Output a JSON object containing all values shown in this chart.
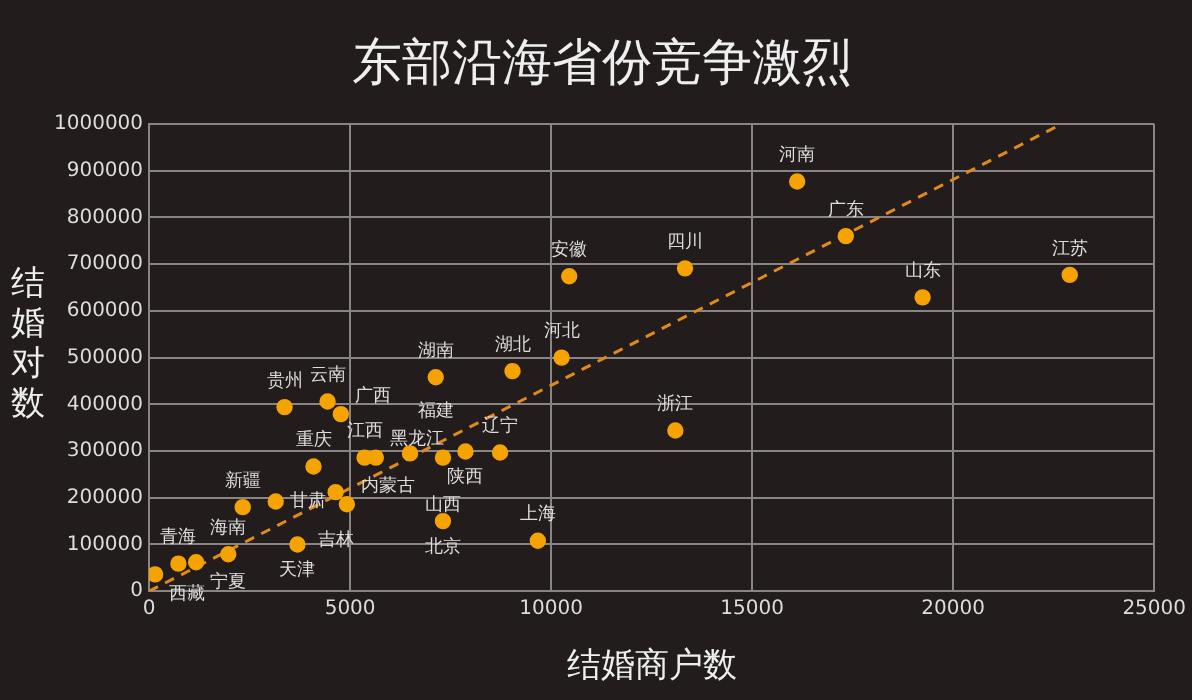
{
  "chart_data": {
    "type": "scatter",
    "title": "东部沿海省份竞争激烈",
    "xlabel": "结婚商户数",
    "ylabel": "结婚对数",
    "xlim": [
      0,
      25000
    ],
    "xticks": [
      0,
      5000,
      10000,
      15000,
      20000,
      25000
    ],
    "ylim": [
      0,
      1000000
    ],
    "yticks": [
      0,
      100000,
      200000,
      300000,
      400000,
      500000,
      600000,
      700000,
      800000,
      900000,
      1000000
    ],
    "grid": true,
    "legend": false,
    "marker": "circle",
    "series": [
      {
        "color": "#f5a300",
        "x": [
          150,
          730,
          1170,
          1970,
          2330,
          3150,
          4090,
          3370,
          4440,
          4770,
          4640,
          4920,
          3690,
          5360,
          5640,
          6490,
          7870,
          7310,
          7310,
          8730,
          9670,
          7130,
          9040,
          10260,
          10450,
          13090,
          13330,
          16120,
          17330,
          19240,
          22900
        ],
        "values": [
          36000,
          59000,
          62000,
          79000,
          180000,
          192000,
          267000,
          394000,
          406000,
          379000,
          212000,
          186000,
          100000,
          286000,
          286000,
          295000,
          299000,
          286000,
          150000,
          297000,
          108000,
          458000,
          471000,
          500000,
          674000,
          344000,
          691000,
          877000,
          760000,
          629000,
          677000
        ]
      },
      {
        "type": "line",
        "color": "#e08a1e",
        "line_style": "dashed",
        "marker": "none",
        "x": [
          0,
          22560
        ],
        "values": [
          0,
          994000
        ]
      }
    ],
    "annotations": [
      {
        "text": "西藏",
        "x": 150,
        "y": 36000
      },
      {
        "text": "青海",
        "x": 730,
        "y": 59000
      },
      {
        "text": "宁夏",
        "x": 1170,
        "y": 62000
      },
      {
        "text": "海南",
        "x": 1970,
        "y": 79000
      },
      {
        "text": "新疆",
        "x": 2330,
        "y": 180000
      },
      {
        "text": "甘肃",
        "x": 3150,
        "y": 192000
      },
      {
        "text": "重庆",
        "x": 4090,
        "y": 267000
      },
      {
        "text": "贵州",
        "x": 3370,
        "y": 394000
      },
      {
        "text": "云南",
        "x": 4440,
        "y": 406000
      },
      {
        "text": "广西",
        "x": 4770,
        "y": 379000
      },
      {
        "text": "吉林",
        "x": 4640,
        "y": 212000
      },
      {
        "text": "内蒙古",
        "x": 4920,
        "y": 186000
      },
      {
        "text": "天津",
        "x": 3690,
        "y": 100000
      },
      {
        "text": "江西",
        "x": 5360,
        "y": 286000
      },
      {
        "text": "黑龙江",
        "x": 5640,
        "y": 286000
      },
      {
        "text": "福建",
        "x": 6490,
        "y": 295000
      },
      {
        "text": "陕西",
        "x": 7870,
        "y": 299000
      },
      {
        "text": "山西",
        "x": 7310,
        "y": 286000
      },
      {
        "text": "北京",
        "x": 7310,
        "y": 150000
      },
      {
        "text": "辽宁",
        "x": 8730,
        "y": 297000
      },
      {
        "text": "上海",
        "x": 9670,
        "y": 108000
      },
      {
        "text": "湖南",
        "x": 7130,
        "y": 458000
      },
      {
        "text": "湖北",
        "x": 9040,
        "y": 471000
      },
      {
        "text": "河北",
        "x": 10260,
        "y": 500000
      },
      {
        "text": "安徽",
        "x": 10450,
        "y": 674000
      },
      {
        "text": "浙江",
        "x": 13090,
        "y": 344000
      },
      {
        "text": "四川",
        "x": 13330,
        "y": 691000
      },
      {
        "text": "河南",
        "x": 16120,
        "y": 877000
      },
      {
        "text": "广东",
        "x": 17330,
        "y": 760000
      },
      {
        "text": "山东",
        "x": 19240,
        "y": 629000
      },
      {
        "text": "江苏",
        "x": 22900,
        "y": 677000
      }
    ]
  }
}
